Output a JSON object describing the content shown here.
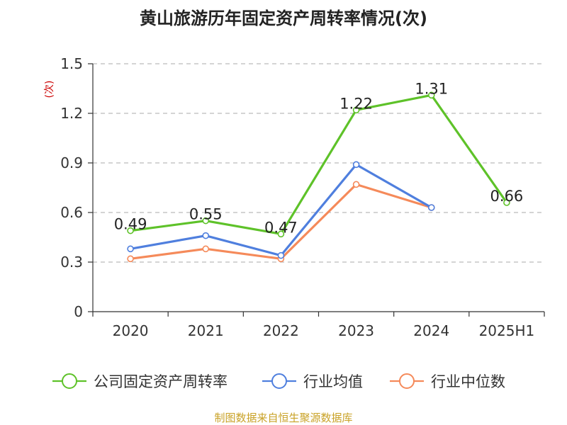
{
  "chart_data": {
    "type": "line",
    "title": "黄山旅游历年固定资产周转率情况(次)",
    "ylabel": "(次)",
    "xlabel": "",
    "categories": [
      "2020",
      "2021",
      "2022",
      "2023",
      "2024",
      "2025H1"
    ],
    "ylim": [
      0,
      1.5
    ],
    "yticks": [
      "0",
      "0.3",
      "0.6",
      "0.9",
      "1.2",
      "1.5"
    ],
    "grid": true,
    "legend_position": "bottom",
    "series": [
      {
        "name": "公司固定资产周转率",
        "color": "#5ec229",
        "values": [
          0.49,
          0.55,
          0.47,
          1.22,
          1.31,
          0.66
        ],
        "labels": [
          "0.49",
          "0.55",
          "0.47",
          "1.22",
          "1.31",
          "0.66"
        ]
      },
      {
        "name": "行业均值",
        "color": "#4f7fde",
        "values": [
          0.38,
          0.46,
          0.34,
          0.89,
          0.63,
          null
        ]
      },
      {
        "name": "行业中位数",
        "color": "#f58a5a",
        "values": [
          0.32,
          0.38,
          0.32,
          0.77,
          0.63,
          null
        ]
      }
    ]
  },
  "source": "制图数据来自恒生聚源数据库"
}
